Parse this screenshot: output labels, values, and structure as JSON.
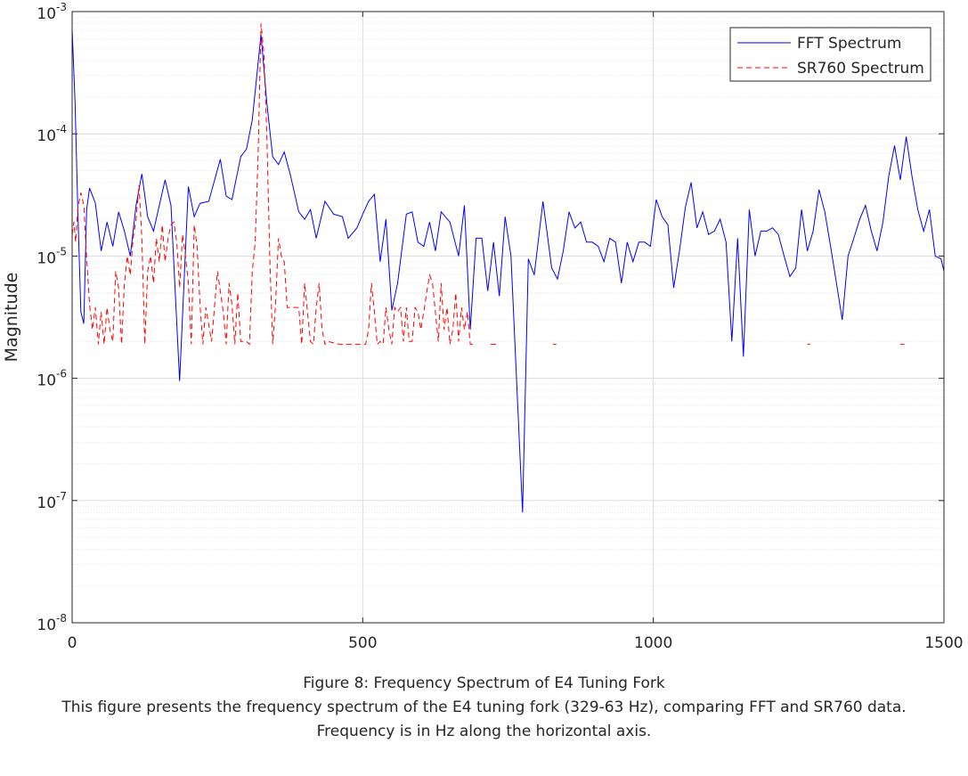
{
  "chart_data": {
    "type": "line",
    "title": "",
    "xlabel": "",
    "ylabel": "Magnitude",
    "xlim": [
      0,
      1500
    ],
    "ylim": [
      1e-08,
      0.001
    ],
    "yscale": "log",
    "grid": true,
    "minor_grid": true,
    "legend_position": "top-right",
    "x_ticks": [
      0,
      500,
      1000,
      1500
    ],
    "x_tick_labels": [
      "0",
      "500",
      "1000",
      "1500"
    ],
    "y_ticks": [
      1e-08,
      1e-07,
      1e-06,
      1e-05,
      0.0001,
      0.001
    ],
    "y_tick_labels": [
      {
        "base": "10",
        "exp": "-8"
      },
      {
        "base": "10",
        "exp": "-7"
      },
      {
        "base": "10",
        "exp": "-6"
      },
      {
        "base": "10",
        "exp": "-5"
      },
      {
        "base": "10",
        "exp": "-4"
      },
      {
        "base": "10",
        "exp": "-3"
      }
    ],
    "series": [
      {
        "name": "FFT Spectrum",
        "color": "#0000ff",
        "style": "solid",
        "points": [
          [
            0,
            0.00072
          ],
          [
            5,
            0.00018
          ],
          [
            10,
            2.2e-05
          ],
          [
            15,
            3.5e-06
          ],
          [
            20,
            2.8e-06
          ],
          [
            25,
            2.4e-05
          ],
          [
            30,
            3.6e-05
          ],
          [
            40,
            2.7e-05
          ],
          [
            50,
            1.1e-05
          ],
          [
            60,
            1.9e-05
          ],
          [
            70,
            1.2e-05
          ],
          [
            80,
            2.3e-05
          ],
          [
            90,
            1.6e-05
          ],
          [
            100,
            1e-05
          ],
          [
            110,
            2.6e-05
          ],
          [
            120,
            4.7e-05
          ],
          [
            130,
            2.1e-05
          ],
          [
            140,
            1.6e-05
          ],
          [
            150,
            2.6e-05
          ],
          [
            160,
            4.2e-05
          ],
          [
            170,
            2.6e-05
          ],
          [
            185,
            9.5e-07
          ],
          [
            200,
            3.7e-05
          ],
          [
            210,
            2.1e-05
          ],
          [
            220,
            2.7e-05
          ],
          [
            235,
            2.8e-05
          ],
          [
            255,
            6.2e-05
          ],
          [
            265,
            3.1e-05
          ],
          [
            275,
            2.9e-05
          ],
          [
            290,
            6.5e-05
          ],
          [
            300,
            7.5e-05
          ],
          [
            310,
            0.00013
          ],
          [
            325,
            0.00065
          ],
          [
            335,
            0.00018
          ],
          [
            345,
            6.5e-05
          ],
          [
            355,
            5.6e-05
          ],
          [
            365,
            7.1e-05
          ],
          [
            375,
            4.7e-05
          ],
          [
            390,
            2.3e-05
          ],
          [
            400,
            2e-05
          ],
          [
            410,
            2.4e-05
          ],
          [
            420,
            1.4e-05
          ],
          [
            435,
            2.8e-05
          ],
          [
            450,
            2.2e-05
          ],
          [
            465,
            2.1e-05
          ],
          [
            475,
            1.4e-05
          ],
          [
            490,
            1.7e-05
          ],
          [
            500,
            2.2e-05
          ],
          [
            510,
            2.8e-05
          ],
          [
            520,
            3.2e-05
          ],
          [
            530,
            9e-06
          ],
          [
            540,
            2e-05
          ],
          [
            550,
            3.6e-06
          ],
          [
            560,
            6e-06
          ],
          [
            575,
            2.2e-05
          ],
          [
            585,
            2.3e-05
          ],
          [
            595,
            1.3e-05
          ],
          [
            605,
            1.2e-05
          ],
          [
            615,
            1.9e-05
          ],
          [
            625,
            1.1e-05
          ],
          [
            635,
            2.3e-05
          ],
          [
            650,
            1.9e-05
          ],
          [
            665,
            1e-05
          ],
          [
            675,
            2.6e-05
          ],
          [
            685,
            2.5e-06
          ],
          [
            695,
            1.4e-05
          ],
          [
            705,
            1.4e-05
          ],
          [
            715,
            5.2e-06
          ],
          [
            725,
            1.3e-05
          ],
          [
            735,
            4.7e-06
          ],
          [
            745,
            2.1e-05
          ],
          [
            755,
            1e-05
          ],
          [
            775,
            8e-08
          ],
          [
            785,
            9.5e-06
          ],
          [
            795,
            7e-06
          ],
          [
            810,
            2.8e-05
          ],
          [
            825,
            8e-06
          ],
          [
            835,
            6.5e-06
          ],
          [
            845,
            1.1e-05
          ],
          [
            855,
            2.3e-05
          ],
          [
            865,
            1.7e-05
          ],
          [
            875,
            1.9e-05
          ],
          [
            885,
            1.3e-05
          ],
          [
            895,
            1.3e-05
          ],
          [
            905,
            1.2e-05
          ],
          [
            915,
            9e-06
          ],
          [
            925,
            1.4e-05
          ],
          [
            935,
            1.3e-05
          ],
          [
            945,
            6e-06
          ],
          [
            955,
            1.3e-05
          ],
          [
            965,
            9e-06
          ],
          [
            975,
            1.3e-05
          ],
          [
            985,
            1.3e-05
          ],
          [
            995,
            1.2e-05
          ],
          [
            1005,
            2.9e-05
          ],
          [
            1015,
            2.1e-05
          ],
          [
            1025,
            1.8e-05
          ],
          [
            1035,
            5.5e-06
          ],
          [
            1045,
            1.1e-05
          ],
          [
            1055,
            2.5e-05
          ],
          [
            1065,
            4e-05
          ],
          [
            1075,
            1.7e-05
          ],
          [
            1085,
            2.3e-05
          ],
          [
            1095,
            1.5e-05
          ],
          [
            1105,
            1.6e-05
          ],
          [
            1115,
            2e-05
          ],
          [
            1125,
            1.3e-05
          ],
          [
            1135,
            2e-06
          ],
          [
            1145,
            1.4e-05
          ],
          [
            1155,
            1.5e-06
          ],
          [
            1165,
            2.4e-05
          ],
          [
            1175,
            1e-05
          ],
          [
            1185,
            1.6e-05
          ],
          [
            1195,
            1.6e-05
          ],
          [
            1205,
            1.7e-05
          ],
          [
            1215,
            1.5e-05
          ],
          [
            1225,
            1e-05
          ],
          [
            1235,
            6.8e-06
          ],
          [
            1245,
            8e-06
          ],
          [
            1255,
            2.4e-05
          ],
          [
            1265,
            1.1e-05
          ],
          [
            1275,
            1.6e-05
          ],
          [
            1285,
            3.5e-05
          ],
          [
            1295,
            2.3e-05
          ],
          [
            1305,
            1.2e-05
          ],
          [
            1315,
            6e-06
          ],
          [
            1325,
            3e-06
          ],
          [
            1335,
            1e-05
          ],
          [
            1345,
            1.4e-05
          ],
          [
            1355,
            2e-05
          ],
          [
            1365,
            2.6e-05
          ],
          [
            1375,
            1.6e-05
          ],
          [
            1385,
            1.1e-05
          ],
          [
            1395,
            1.9e-05
          ],
          [
            1405,
            4.5e-05
          ],
          [
            1415,
            8e-05
          ],
          [
            1425,
            4.2e-05
          ],
          [
            1435,
            9.5e-05
          ],
          [
            1445,
            4.5e-05
          ],
          [
            1455,
            2.4e-05
          ],
          [
            1465,
            1.6e-05
          ],
          [
            1475,
            2.4e-05
          ],
          [
            1485,
            1e-05
          ],
          [
            1495,
            9.5e-06
          ],
          [
            1500,
            7.5e-06
          ]
        ]
      },
      {
        "name": "SR760 Spectrum",
        "color": "#ff0000",
        "style": "dashed",
        "points": [
          [
            0,
            1.5e-05
          ],
          [
            3,
            1.9e-05
          ],
          [
            6,
            1.3e-05
          ],
          [
            10,
            2.5e-05
          ],
          [
            15,
            3.3e-05
          ],
          [
            20,
            2.6e-05
          ],
          [
            25,
            9.5e-06
          ],
          [
            30,
            4e-06
          ],
          [
            35,
            2.5e-06
          ],
          [
            40,
            3.8e-06
          ],
          [
            45,
            1.9e-06
          ],
          [
            50,
            3.5e-06
          ],
          [
            55,
            1.9e-06
          ],
          [
            60,
            3.8e-06
          ],
          [
            65,
            2.5e-06
          ],
          [
            70,
            2e-06
          ],
          [
            75,
            7.5e-06
          ],
          [
            80,
            5.5e-06
          ],
          [
            85,
            1.9e-06
          ],
          [
            90,
            6e-06
          ],
          [
            95,
            1e-05
          ],
          [
            100,
            7e-06
          ],
          [
            105,
            1.4e-05
          ],
          [
            110,
            2e-05
          ],
          [
            115,
            3.8e-05
          ],
          [
            120,
            1.4e-05
          ],
          [
            125,
            1.9e-06
          ],
          [
            130,
            7.5e-06
          ],
          [
            135,
            1e-05
          ],
          [
            140,
            6e-06
          ],
          [
            145,
            1.4e-05
          ],
          [
            150,
            9e-06
          ],
          [
            155,
            1.8e-05
          ],
          [
            160,
            9e-06
          ],
          [
            165,
            1.4e-05
          ],
          [
            170,
            1.8e-05
          ],
          [
            175,
            1.9e-05
          ],
          [
            180,
            1.3e-05
          ],
          [
            185,
            5.5e-06
          ],
          [
            190,
            1.5e-05
          ],
          [
            195,
            1e-05
          ],
          [
            200,
            6e-06
          ],
          [
            205,
            1.9e-06
          ],
          [
            210,
            1.8e-05
          ],
          [
            215,
            1.2e-05
          ],
          [
            220,
            4e-06
          ],
          [
            225,
            1.9e-06
          ],
          [
            230,
            3.8e-06
          ],
          [
            240,
            2e-06
          ],
          [
            250,
            7.5e-06
          ],
          [
            260,
            3.5e-06
          ],
          [
            265,
            1.9e-06
          ],
          [
            270,
            6e-06
          ],
          [
            275,
            4e-06
          ],
          [
            280,
            1.9e-06
          ],
          [
            285,
            5e-06
          ],
          [
            290,
            2e-06
          ],
          [
            300,
            2e-06
          ],
          [
            305,
            1.9e-06
          ],
          [
            310,
            7.5e-06
          ],
          [
            315,
            1.3e-05
          ],
          [
            320,
            7e-05
          ],
          [
            325,
            0.0008
          ],
          [
            330,
            0.00045
          ],
          [
            335,
            0.0001
          ],
          [
            340,
            1e-05
          ],
          [
            345,
            1.9e-06
          ],
          [
            350,
            4e-06
          ],
          [
            355,
            1.4e-05
          ],
          [
            360,
            1e-05
          ],
          [
            365,
            9e-06
          ],
          [
            370,
            3.8e-06
          ],
          [
            390,
            3.8e-06
          ],
          [
            395,
            1.9e-06
          ],
          [
            400,
            6e-06
          ],
          [
            405,
            3.5e-06
          ],
          [
            410,
            2e-06
          ],
          [
            415,
            1.9e-06
          ],
          [
            420,
            3.8e-06
          ],
          [
            425,
            6e-06
          ],
          [
            430,
            2.5e-06
          ],
          [
            435,
            1.9e-06
          ],
          [
            440,
            2e-06
          ],
          [
            460,
            1.9e-06
          ],
          [
            475,
            1.9e-06
          ],
          [
            485,
            1.9e-06
          ],
          [
            500,
            1.9e-06
          ],
          [
            505,
            1.9e-06
          ],
          [
            510,
            2.5e-06
          ],
          [
            515,
            6e-06
          ],
          [
            520,
            3.5e-06
          ],
          [
            525,
            1.9e-06
          ],
          [
            530,
            2e-06
          ],
          [
            535,
            1.9e-06
          ],
          [
            540,
            3.8e-06
          ],
          [
            545,
            2.5e-06
          ],
          [
            550,
            1.9e-06
          ],
          [
            555,
            3.8e-06
          ],
          [
            560,
            3.5e-06
          ],
          [
            565,
            3.8e-06
          ],
          [
            570,
            2e-06
          ],
          [
            575,
            3.8e-06
          ],
          [
            580,
            2e-06
          ],
          [
            585,
            2e-06
          ],
          [
            590,
            3.8e-06
          ],
          [
            595,
            3.5e-06
          ],
          [
            600,
            2.5e-06
          ],
          [
            605,
            3.5e-06
          ],
          [
            610,
            5e-06
          ],
          [
            615,
            7e-06
          ],
          [
            620,
            6e-06
          ],
          [
            625,
            3.5e-06
          ],
          [
            630,
            2e-06
          ],
          [
            635,
            6e-06
          ],
          [
            640,
            2.5e-06
          ],
          [
            645,
            3.8e-06
          ],
          [
            650,
            1.9e-06
          ],
          [
            655,
            2.5e-06
          ],
          [
            660,
            5e-06
          ],
          [
            665,
            2e-06
          ],
          [
            670,
            3.8e-06
          ],
          [
            675,
            2.5e-06
          ],
          [
            680,
            3.5e-06
          ],
          [
            685,
            1.9e-06
          ],
          [
            690,
            1.9e-06
          ]
        ],
        "fragments": [
          [
            [
              720,
              1.9e-06
            ],
            [
              732,
              1.9e-06
            ]
          ],
          [
            [
              827,
              1.9e-06
            ],
            [
              833,
              1.9e-06
            ]
          ],
          [
            [
              1265,
              1.9e-06
            ],
            [
              1270,
              1.9e-06
            ]
          ],
          [
            [
              1425,
              1.9e-06
            ],
            [
              1432,
              1.9e-06
            ]
          ]
        ]
      }
    ]
  },
  "caption": {
    "line1": "Figure 8: Frequency Spectrum of E4 Tuning Fork",
    "line2": "This figure presents the frequency spectrum of the E4 tuning fork (329-63 Hz), comparing FFT and SR760 data.",
    "line3": "Frequency is in Hz along the horizontal axis."
  }
}
